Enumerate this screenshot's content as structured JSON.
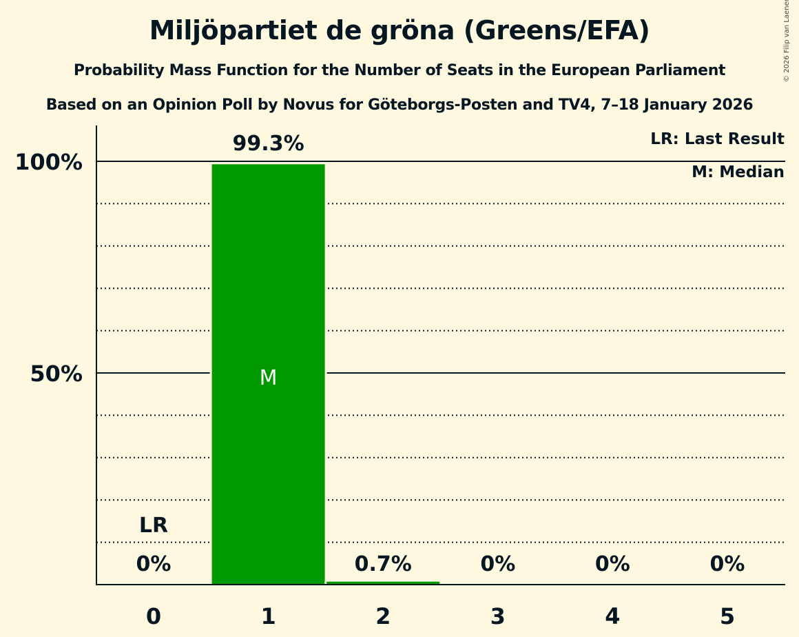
{
  "header": {
    "title": "Miljöpartiet de gröna (Greens/EFA)",
    "subtitle": "Probability Mass Function for the Number of Seats in the European Parliament",
    "source": "Based on an Opinion Poll by Novus for Göteborgs-Posten and TV4, 7–18 January 2026",
    "copyright": "© 2026 Filip van Laenen"
  },
  "legend": {
    "last_result": "LR: Last Result",
    "median": "M: Median"
  },
  "colors": {
    "background": "#fff8e1",
    "bar": "#009900",
    "text": "#061722"
  },
  "chart_data": {
    "type": "bar",
    "title": "Miljöpartiet de gröna (Greens/EFA)",
    "subtitle": "Probability Mass Function for the Number of Seats in the European Parliament",
    "xlabel": "",
    "ylabel": "",
    "categories": [
      "0",
      "1",
      "2",
      "3",
      "4",
      "5"
    ],
    "values": [
      0,
      99.3,
      0.7,
      0,
      0,
      0
    ],
    "value_labels": [
      "0%",
      "99.3%",
      "0.7%",
      "0%",
      "0%",
      "0%"
    ],
    "ylim": [
      0,
      100
    ],
    "y_ticks": [
      {
        "value": 50,
        "label": "50%"
      },
      {
        "value": 100,
        "label": "100%"
      }
    ],
    "grid": {
      "major": [
        50,
        100
      ],
      "minor": [
        10,
        20,
        30,
        40,
        60,
        70,
        80,
        90
      ]
    },
    "annotations": [
      {
        "category": "0",
        "text": "LR",
        "meaning": "Last Result"
      },
      {
        "category": "1",
        "text": "M",
        "meaning": "Median"
      }
    ],
    "legend_position": "top-right"
  }
}
